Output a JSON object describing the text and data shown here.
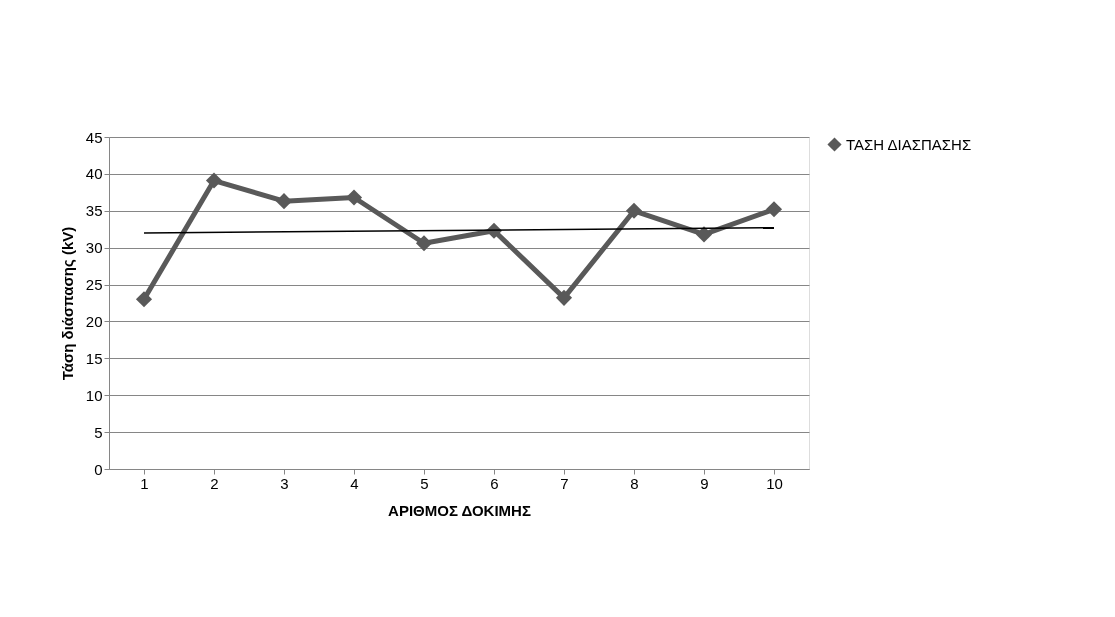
{
  "chart_data": {
    "type": "line",
    "xlabel": "ΑΡΙΘΜΟΣ ΔΟΚΙΜΗΣ",
    "ylabel": "Τάση διάσπασης  (kV)",
    "categories": [
      "1",
      "2",
      "3",
      "4",
      "5",
      "6",
      "7",
      "8",
      "9",
      "10"
    ],
    "series": [
      {
        "name": "ΤΑΣΗ ΔΙΑΣΠΑΣΗΣ",
        "color": "#595959",
        "marker": "diamond",
        "values": [
          23.0,
          39.1,
          36.3,
          36.8,
          30.6,
          32.3,
          23.2,
          35.0,
          31.8,
          35.2
        ]
      },
      {
        "type": "line",
        "color": "#000000",
        "marker": "none",
        "x": [
          "1",
          "10"
        ],
        "values": [
          32.0,
          32.7
        ]
      }
    ],
    "ylim": [
      0,
      45
    ],
    "yticks": [
      0,
      5,
      10,
      15,
      20,
      25,
      30,
      35,
      40,
      45
    ],
    "grid": "y",
    "legend": "right",
    "line_style": "solid"
  }
}
